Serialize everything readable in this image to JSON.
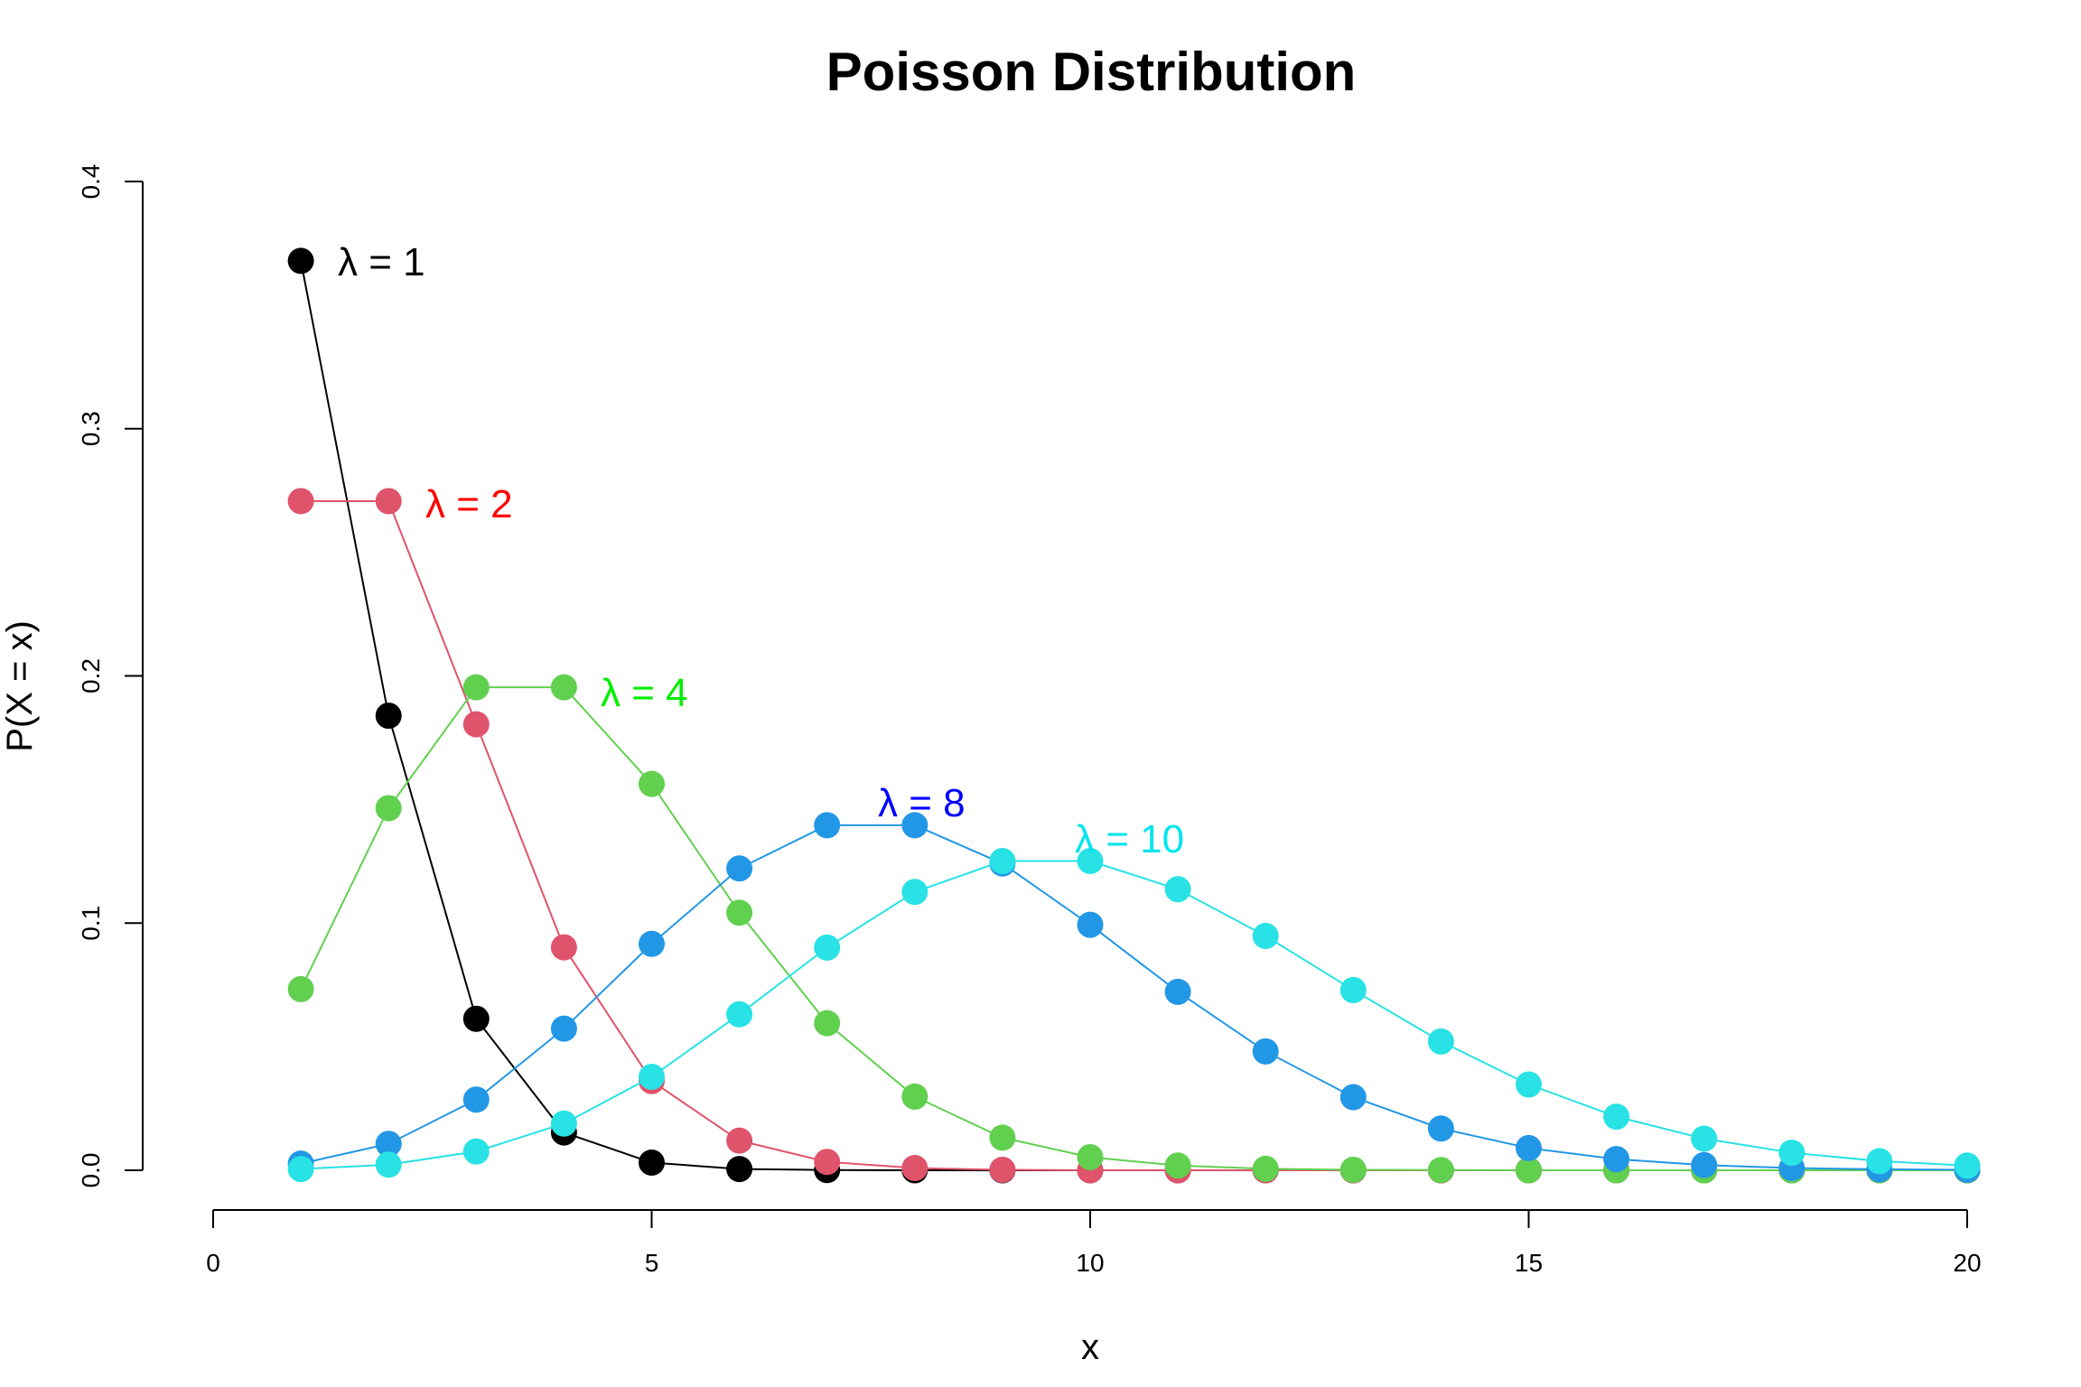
{
  "chart_data": {
    "type": "line",
    "title": "Poisson Distribution",
    "xlabel": "x",
    "ylabel": "P(X = x)",
    "xlim": [
      0,
      20
    ],
    "ylim": [
      0,
      0.4
    ],
    "x_ticks": [
      "0",
      "5",
      "10",
      "15",
      "20"
    ],
    "y_ticks": [
      "0.0",
      "0.1",
      "0.2",
      "0.3",
      "0.4"
    ],
    "grid": false,
    "markers": "filled-circle",
    "x": [
      1,
      2,
      3,
      4,
      5,
      6,
      7,
      8,
      9,
      10,
      11,
      12,
      13,
      14,
      15,
      16,
      17,
      18,
      19,
      20
    ],
    "series": [
      {
        "name": "λ = 1",
        "color": "#000000",
        "label_color": "#000000",
        "values": [
          0.3679,
          0.1839,
          0.0613,
          0.0153,
          0.0031,
          0.0005,
          0.0001,
          0,
          0,
          0,
          0,
          0,
          0,
          0,
          0,
          0,
          0,
          0,
          0,
          0
        ]
      },
      {
        "name": "λ = 2",
        "color": "#DF536B",
        "label_color": "#FF0000",
        "values": [
          0.2707,
          0.2707,
          0.1804,
          0.0902,
          0.0361,
          0.012,
          0.0034,
          0.0009,
          0.0002,
          0,
          0,
          0,
          0,
          0,
          0,
          0,
          0,
          0,
          0,
          0
        ]
      },
      {
        "name": "λ = 4",
        "color": "#61D04F",
        "label_color": "#00EE00",
        "values": [
          0.0733,
          0.1465,
          0.1954,
          0.1954,
          0.1563,
          0.1042,
          0.0595,
          0.0298,
          0.0132,
          0.0053,
          0.0019,
          0.0006,
          0.0002,
          0.0001,
          0,
          0,
          0,
          0,
          0,
          0
        ]
      },
      {
        "name": "λ = 8",
        "color": "#2297E6",
        "label_color": "#0000FF",
        "values": [
          0.0027,
          0.0107,
          0.0286,
          0.0573,
          0.0916,
          0.1221,
          0.1396,
          0.1396,
          0.1241,
          0.0993,
          0.0722,
          0.0481,
          0.0296,
          0.0169,
          0.009,
          0.0045,
          0.0021,
          0.0009,
          0.0004,
          0.0002
        ]
      },
      {
        "name": "λ = 10",
        "color": "#28E2E5",
        "label_color": "#00E5EE",
        "values": [
          0.0005,
          0.0023,
          0.0076,
          0.0189,
          0.0378,
          0.0631,
          0.0901,
          0.1126,
          0.1251,
          0.1251,
          0.1137,
          0.0948,
          0.0729,
          0.0521,
          0.0347,
          0.0217,
          0.0128,
          0.0071,
          0.0037,
          0.0019
        ]
      }
    ]
  }
}
